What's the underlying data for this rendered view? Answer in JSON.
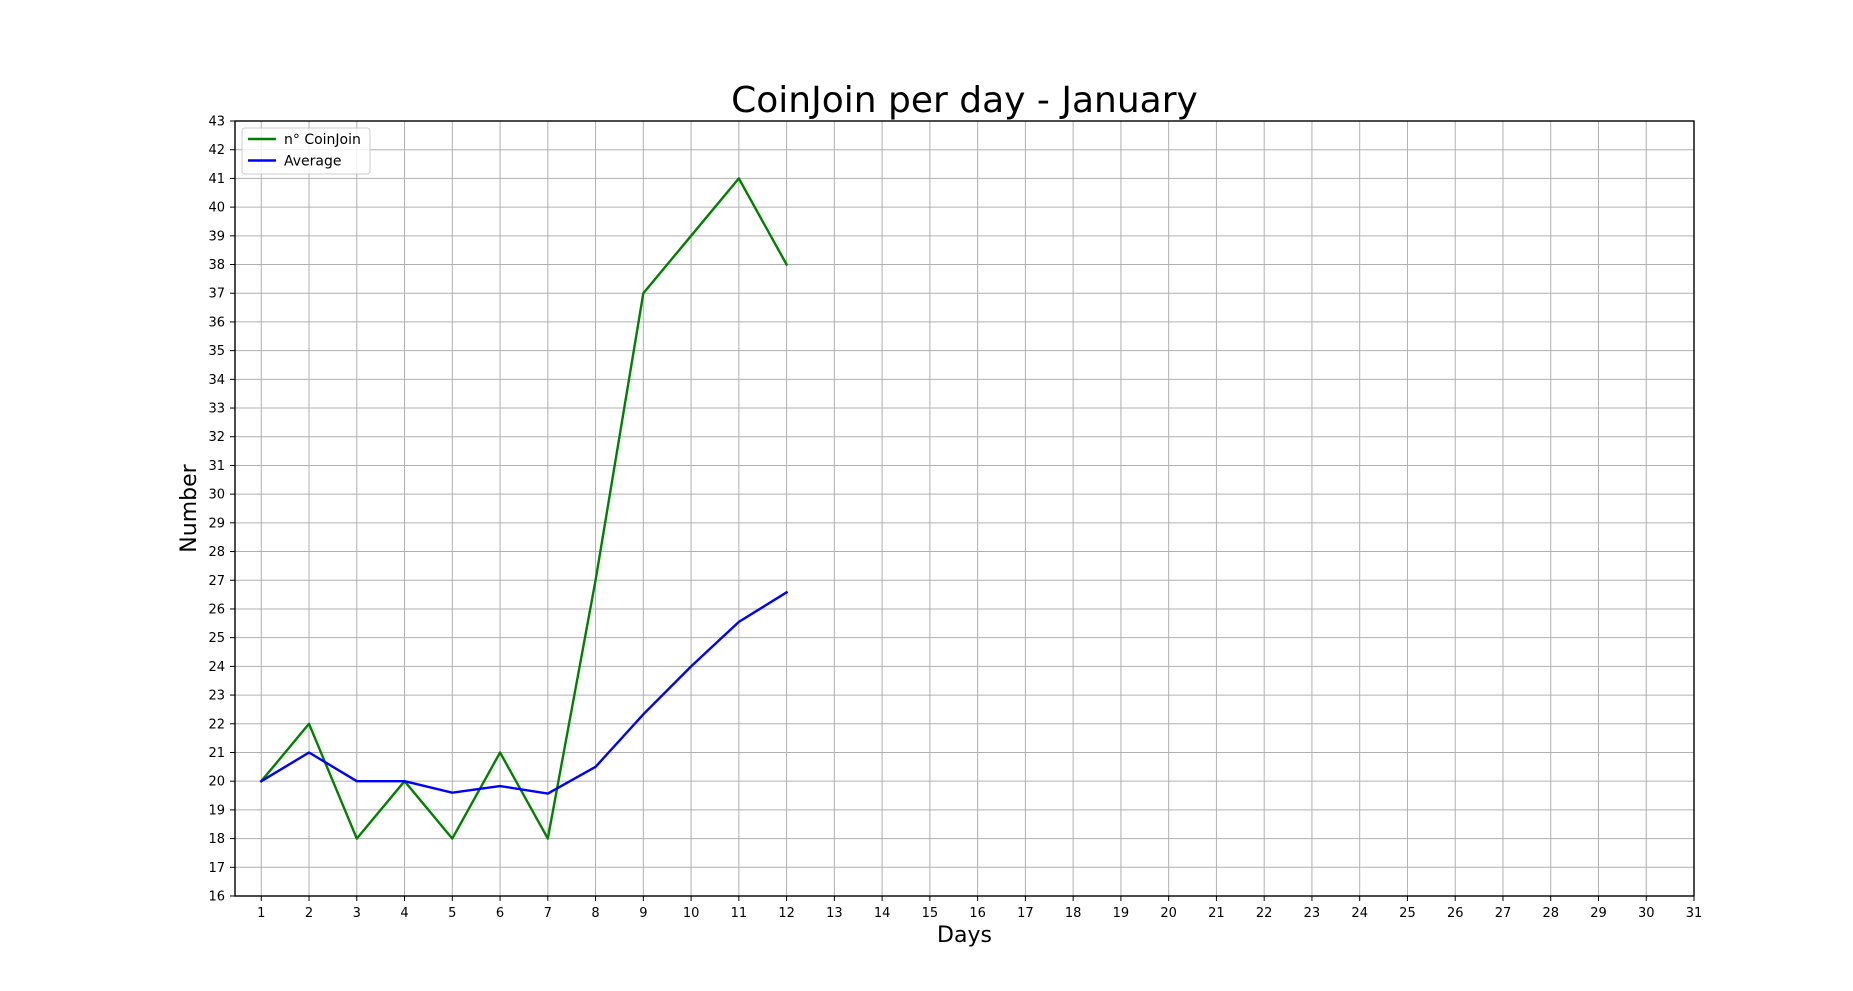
{
  "chart_data": {
    "type": "line",
    "title": "CoinJoin per day - January",
    "xlabel": "Days",
    "ylabel": "Number",
    "x_ticks": [
      1,
      2,
      3,
      4,
      5,
      6,
      7,
      8,
      9,
      10,
      11,
      12,
      13,
      14,
      15,
      16,
      17,
      18,
      19,
      20,
      21,
      22,
      23,
      24,
      25,
      26,
      27,
      28,
      29,
      30,
      31
    ],
    "y_ticks": [
      16,
      17,
      18,
      19,
      20,
      21,
      22,
      23,
      24,
      25,
      26,
      27,
      28,
      29,
      30,
      31,
      32,
      33,
      34,
      35,
      36,
      37,
      38,
      39,
      40,
      41,
      42,
      43
    ],
    "xlim": [
      0.45,
      31
    ],
    "ylim": [
      16,
      43
    ],
    "grid": true,
    "legend_position": "upper-left",
    "series": [
      {
        "name": "n° CoinJoin",
        "color": "#008000",
        "x": [
          1,
          2,
          3,
          4,
          5,
          6,
          7,
          8,
          9,
          10,
          11,
          12
        ],
        "values": [
          20,
          22,
          18,
          20,
          18,
          21,
          18,
          27,
          37,
          39,
          41,
          38
        ]
      },
      {
        "name": "Average",
        "color": "#0000ff",
        "x": [
          1,
          2,
          3,
          4,
          5,
          6,
          7,
          8,
          9,
          10,
          11,
          12
        ],
        "values": [
          20,
          21,
          20,
          20,
          19.6,
          19.83,
          19.57,
          20.5,
          22.33,
          24,
          25.55,
          26.58
        ]
      }
    ]
  }
}
